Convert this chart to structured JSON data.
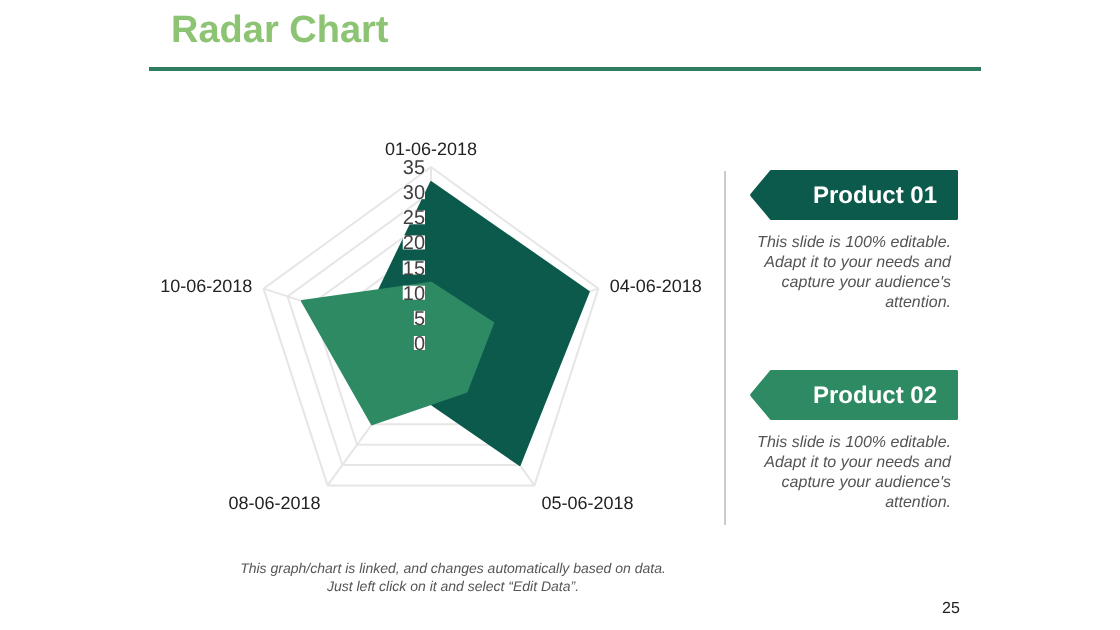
{
  "chart_data": {
    "type": "radar",
    "title": "Radar Chart",
    "categories": [
      "01-06-2018",
      "04-06-2018",
      "05-06-2018",
      "08-06-2018",
      "10-06-2018"
    ],
    "series": [
      {
        "name": "Product 01",
        "color": "#0b5a4c",
        "values": [
          32,
          33,
          30,
          10,
          14
        ]
      },
      {
        "name": "Product 02",
        "color": "#2e8a63",
        "values": [
          12,
          13,
          12,
          20,
          27
        ]
      }
    ],
    "ylim": [
      0,
      35
    ],
    "yticks": [
      0,
      5,
      10,
      15,
      20,
      25,
      30,
      35
    ],
    "grid": true,
    "legend": "right",
    "annotations": [
      "This slide is 100% editable. Adapt it to your needs and capture your audience's attention.",
      "This slide is 100% editable. Adapt it to your needs and capture your audience's attention.",
      "This graph/chart is linked, and changes automatically based on data. Just left click on it and select “Edit Data”.",
      "25"
    ]
  }
}
